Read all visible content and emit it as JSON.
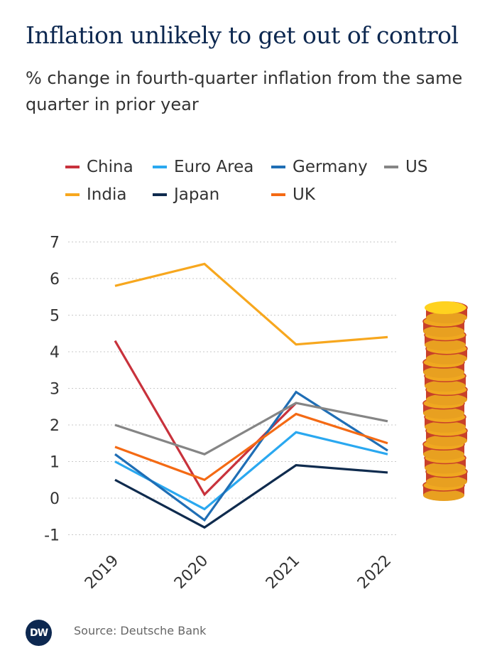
{
  "header": {
    "title": "Inflation unlikely to get out of control",
    "subtitle": "% change in fourth-quarter inflation from the same quarter in prior year"
  },
  "footer": {
    "source": "Source: Deutsche Bank",
    "logo_text": "DW"
  },
  "chart_data": {
    "type": "line",
    "title": "Inflation unlikely to get out of control",
    "subtitle": "% change in fourth-quarter inflation from the same quarter in prior year",
    "xlabel": "",
    "ylabel": "",
    "categories": [
      "2019",
      "2020",
      "2021",
      "2022"
    ],
    "ylim": [
      -1,
      7
    ],
    "yticks": [
      -1,
      0,
      1,
      2,
      3,
      4,
      5,
      6,
      7
    ],
    "legend_position": "top",
    "grid": "dotted horizontal",
    "series": [
      {
        "name": "China",
        "color": "#c8323c",
        "values": [
          4.3,
          0.1,
          2.6,
          null
        ]
      },
      {
        "name": "Euro Area",
        "color": "#2aa8f0",
        "values": [
          1.0,
          -0.3,
          1.8,
          1.2
        ]
      },
      {
        "name": "Germany",
        "color": "#1f6eb5",
        "values": [
          1.2,
          -0.6,
          2.9,
          1.3
        ]
      },
      {
        "name": "US",
        "color": "#858585",
        "values": [
          2.0,
          1.2,
          2.6,
          2.1
        ]
      },
      {
        "name": "India",
        "color": "#f7a71e",
        "values": [
          5.8,
          6.4,
          4.2,
          4.4
        ]
      },
      {
        "name": "Japan",
        "color": "#0f2b4e",
        "values": [
          0.5,
          -0.8,
          0.9,
          0.7
        ]
      },
      {
        "name": "UK",
        "color": "#f46a14",
        "values": [
          1.4,
          0.5,
          2.3,
          1.5
        ]
      }
    ],
    "decoration": "coin-stack-icon"
  }
}
